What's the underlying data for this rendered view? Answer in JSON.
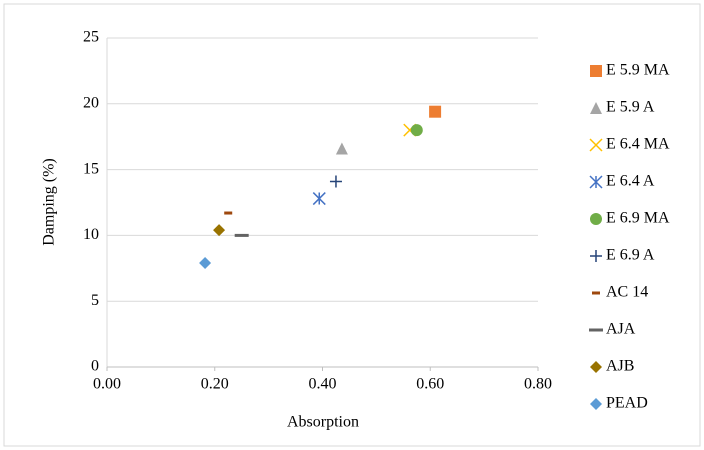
{
  "chart_data": {
    "type": "scatter",
    "x_label": "Absorption",
    "y_label": "Damping (%)",
    "xlim": [
      0,
      0.8
    ],
    "xticks": [
      {
        "value": 0,
        "label": "0.00"
      },
      {
        "value": 0.2,
        "label": "0.20"
      },
      {
        "value": 0.4,
        "label": "0.40"
      },
      {
        "value": 0.6,
        "label": "0.60"
      },
      {
        "value": 0.8,
        "label": "0.80"
      }
    ],
    "ylim": [
      0,
      25
    ],
    "yticks": [
      0,
      5,
      10,
      15,
      20,
      25
    ],
    "grid": true,
    "legend": "right",
    "series": [
      {
        "name": "E 5.9 MA",
        "color": "#ed7d31",
        "marker": "square",
        "x": [
          0.609
        ],
        "values": [
          19.4
        ]
      },
      {
        "name": "E 5.9 A",
        "color": "#a5a5a5",
        "marker": "triangle",
        "x": [
          0.436
        ],
        "values": [
          16.6
        ]
      },
      {
        "name": "E 6.4 MA",
        "color": "#ffc000",
        "marker": "x",
        "x": [
          0.562
        ],
        "values": [
          18.0
        ]
      },
      {
        "name": "E 6.4 A",
        "color": "#4472c4",
        "marker": "asterisk",
        "x": [
          0.394
        ],
        "values": [
          12.8
        ]
      },
      {
        "name": "E 6.9 MA",
        "color": "#70ad47",
        "marker": "circle",
        "x": [
          0.575
        ],
        "values": [
          18.0
        ]
      },
      {
        "name": "E 6.9 A",
        "color": "#264478",
        "marker": "plus",
        "x": [
          0.425
        ],
        "values": [
          14.1
        ]
      },
      {
        "name": "AC 14",
        "color": "#9e480e",
        "marker": "dash",
        "x": [
          0.225
        ],
        "values": [
          11.7
        ]
      },
      {
        "name": "AJA",
        "color": "#636363",
        "marker": "longdash",
        "x": [
          0.25
        ],
        "values": [
          10.0
        ]
      },
      {
        "name": "AJB",
        "color": "#997300",
        "marker": "diamond",
        "x": [
          0.208
        ],
        "values": [
          10.4
        ]
      },
      {
        "name": "PEAD",
        "color": "#5b9bd5",
        "marker": "diamond",
        "x": [
          0.182
        ],
        "values": [
          7.9
        ]
      }
    ]
  }
}
